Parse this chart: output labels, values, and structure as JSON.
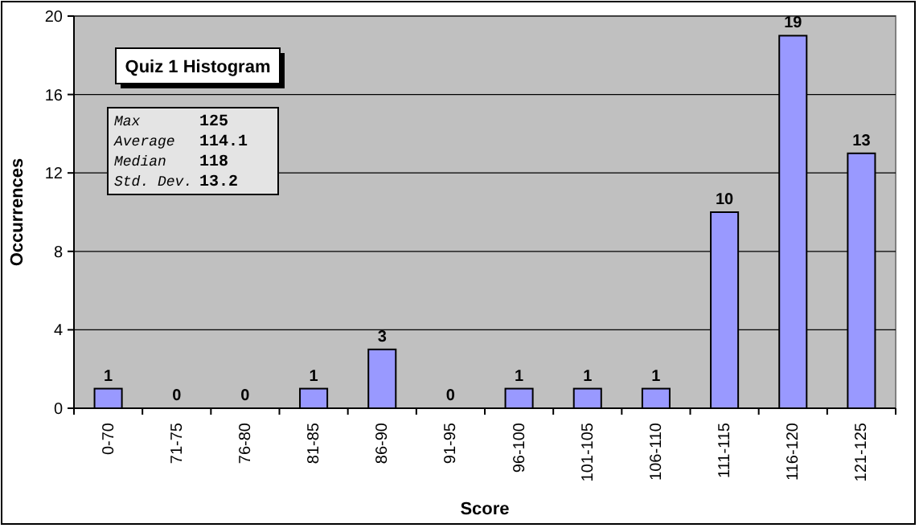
{
  "chart_data": {
    "type": "bar",
    "title": "Quiz 1 Histogram",
    "xlabel": "Score",
    "ylabel": "Occurrences",
    "categories": [
      "0-70",
      "71-75",
      "76-80",
      "81-85",
      "86-90",
      "91-95",
      "96-100",
      "101-105",
      "106-110",
      "111-115",
      "116-120",
      "121-125"
    ],
    "values": [
      1,
      0,
      0,
      1,
      3,
      0,
      1,
      1,
      1,
      10,
      19,
      13
    ],
    "color": "#9999ff",
    "ylim": [
      0,
      20
    ],
    "yticks": [
      0,
      4,
      8,
      12,
      16,
      20
    ],
    "grid": "y",
    "data_labels": true,
    "annotations": [
      "Max 125",
      "Average 114.1",
      "Median 118",
      "Std. Dev. 13.2"
    ]
  }
}
